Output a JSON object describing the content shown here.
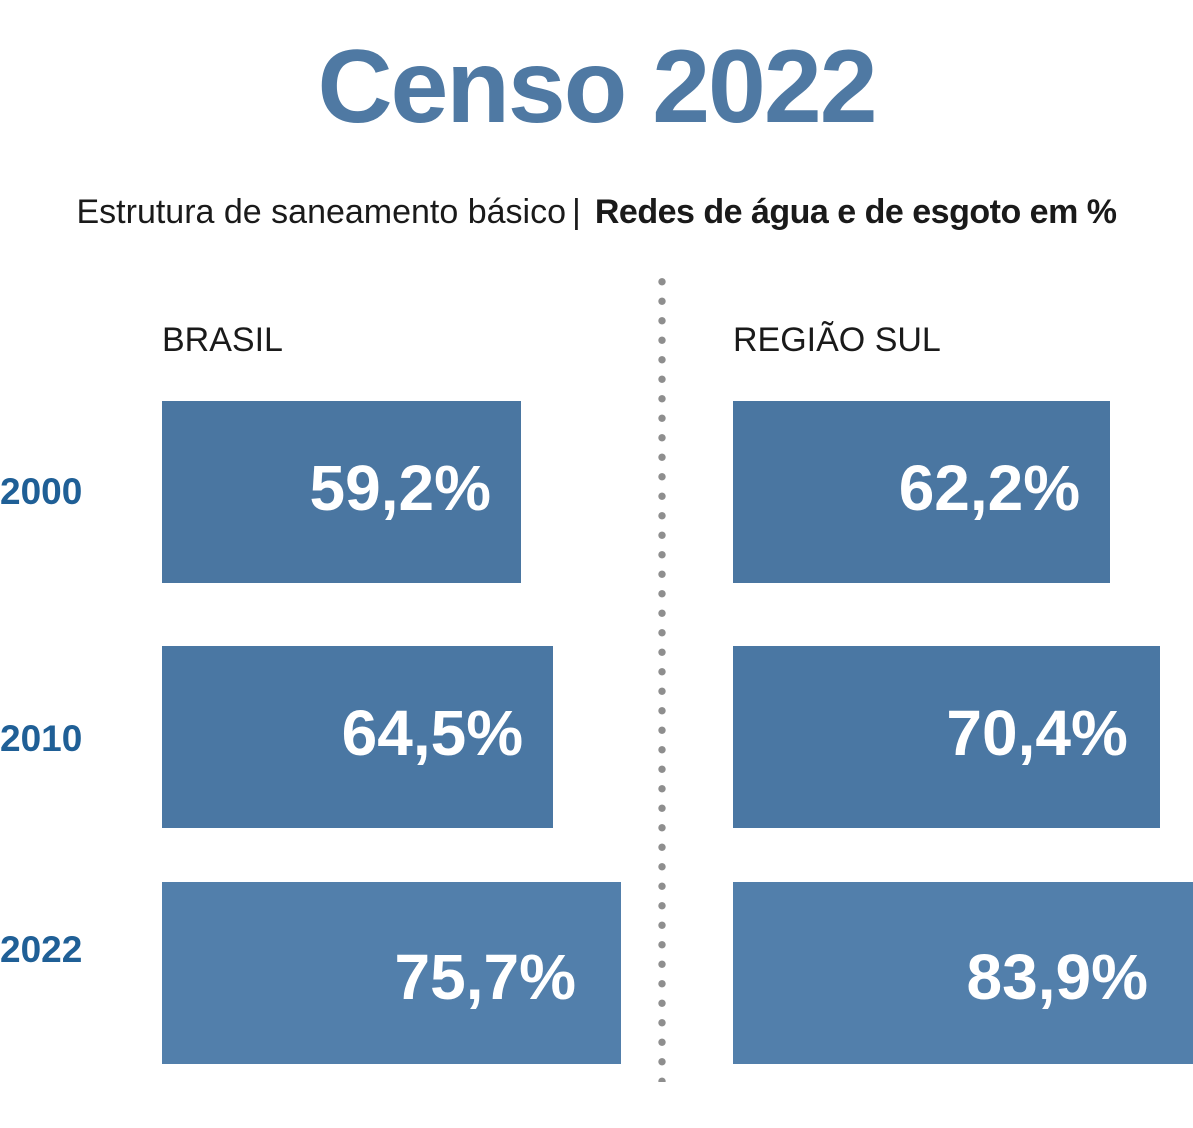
{
  "chart_data": {
    "type": "bar",
    "title": "Censo 2022",
    "subtitle_light": "Estrutura de saneamento básico",
    "subtitle_sep": "|",
    "subtitle_bold": "Redes de água e de esgoto em %",
    "categories": [
      "2000",
      "2010",
      "2022"
    ],
    "series": [
      {
        "name": "BRASIL",
        "values": [
          59.2,
          64.5,
          75.7
        ],
        "labels": [
          "59,2%",
          "64,5%",
          "75,7%"
        ]
      },
      {
        "name": "REGIÃO SUL",
        "values": [
          62.2,
          70.4,
          83.9
        ],
        "labels": [
          "62,2%",
          "70,4%",
          "83,9%"
        ]
      }
    ],
    "orientation": "horizontal",
    "grid": false,
    "colors": {
      "title": "#4f79a3",
      "year_labels": "#1f5f96",
      "bars": [
        "#4a76a1",
        "#4a77a3",
        "#527fab"
      ]
    }
  }
}
